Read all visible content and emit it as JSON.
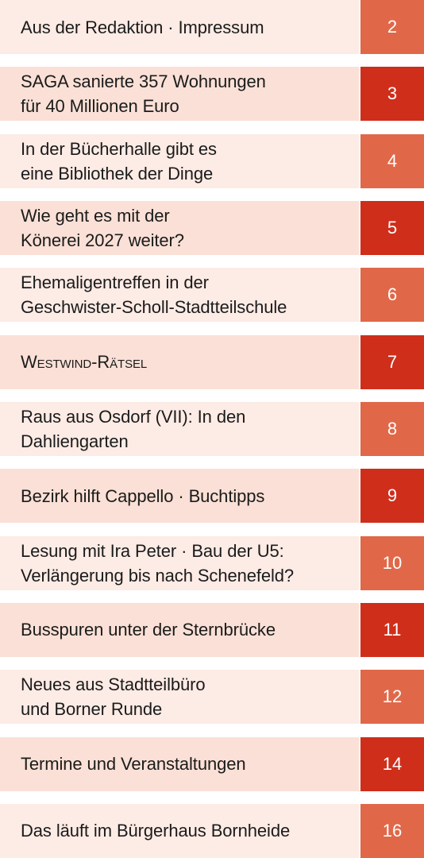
{
  "items": [
    {
      "title": "Aus der Redaktion · Impressum",
      "page": "2"
    },
    {
      "title": "SAGA sanierte 357 Wohnungen\nfür 40 Millionen Euro",
      "page": "3"
    },
    {
      "title": "In der Bücherhalle gibt es\neine Bibliothek der Dinge",
      "page": "4"
    },
    {
      "title": "Wie geht es mit der\nKönerei 2027 weiter?",
      "page": "5"
    },
    {
      "title": "Ehemaligentreffen in der\nGeschwister-Scholl-Stadtteilschule",
      "page": "6"
    },
    {
      "title": "Westwind-Rätsel",
      "page": "7"
    },
    {
      "title": "Raus aus Osdorf (VII): In den\nDahliengarten",
      "page": "8"
    },
    {
      "title": "Bezirk hilft Cappello · Buchtipps",
      "page": "9"
    },
    {
      "title": "Lesung mit Ira Peter · Bau der U5:\nVerlängerung bis nach Schenefeld?",
      "page": "10"
    },
    {
      "title": "Busspuren unter der Sternbrücke",
      "page": "11"
    },
    {
      "title": "Neues aus Stadtteilbüro\nund Borner Runde",
      "page": "12"
    },
    {
      "title": "Termine und Veranstaltungen",
      "page": "14"
    },
    {
      "title": "Das läuft im Bürgerhaus Bornheide",
      "page": "16"
    }
  ]
}
